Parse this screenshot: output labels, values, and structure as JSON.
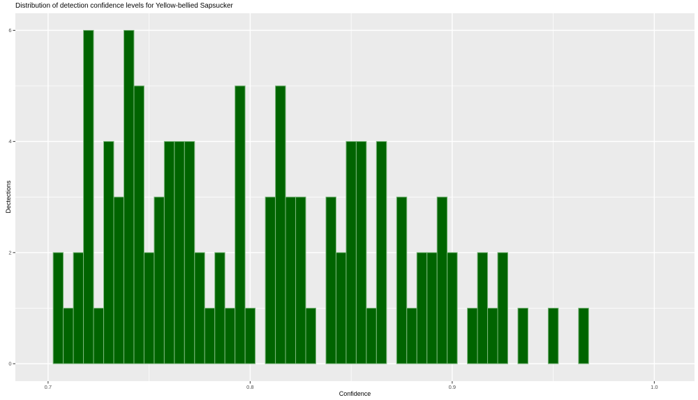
{
  "chart_data": {
    "type": "bar",
    "subtype": "histogram",
    "title": "Distribution of detection confidence levels for Yellow-bellied Sapsucker",
    "xlabel": "Confidence",
    "ylabel": "Dectections",
    "legend": "none",
    "grid": "on",
    "panel_background": "#EBEBEB",
    "grid_color": "#FFFFFF",
    "bar_fill": "#006400",
    "bar_edge_color": "#7DB87D",
    "tick_label_color": "#4D4D4D",
    "tick_mark_color": "#333333",
    "title_color": "#000000",
    "bin_width": 0.005,
    "bin_centers": [
      0.705,
      0.71,
      0.715,
      0.72,
      0.725,
      0.73,
      0.735,
      0.74,
      0.745,
      0.75,
      0.755,
      0.76,
      0.765,
      0.77,
      0.775,
      0.78,
      0.785,
      0.79,
      0.795,
      0.8,
      0.805,
      0.81,
      0.815,
      0.82,
      0.825,
      0.83,
      0.835,
      0.84,
      0.845,
      0.85,
      0.855,
      0.86,
      0.865,
      0.87,
      0.875,
      0.88,
      0.885,
      0.89,
      0.895,
      0.9,
      0.905,
      0.91,
      0.915,
      0.92,
      0.925,
      0.93,
      0.935,
      0.94,
      0.945,
      0.95,
      0.955,
      0.96,
      0.965
    ],
    "counts": [
      2,
      1,
      2,
      6,
      1,
      4,
      3,
      6,
      5,
      2,
      3,
      4,
      4,
      4,
      2,
      1,
      2,
      1,
      5,
      1,
      0,
      3,
      5,
      3,
      3,
      1,
      0,
      3,
      2,
      4,
      4,
      1,
      4,
      0,
      3,
      1,
      2,
      2,
      3,
      2,
      0,
      1,
      2,
      1,
      2,
      0,
      1,
      0,
      0,
      1,
      0,
      0,
      1
    ],
    "total_detections": 114,
    "x_ticks": [
      0.7,
      0.8,
      0.9,
      1.0
    ],
    "x_tick_labels": [
      "0.7",
      "0.8",
      "0.9",
      "1.0"
    ],
    "x_minor_gridlines": [
      0.75,
      0.85,
      0.95
    ],
    "y_ticks": [
      0,
      2,
      4,
      6
    ],
    "y_tick_labels": [
      "0",
      "2",
      "4",
      "6"
    ],
    "y_minor_gridlines": [
      1,
      3,
      5
    ],
    "xlim": [
      0.6838,
      1.0199
    ],
    "ylim": [
      -0.314,
      6.307
    ]
  }
}
